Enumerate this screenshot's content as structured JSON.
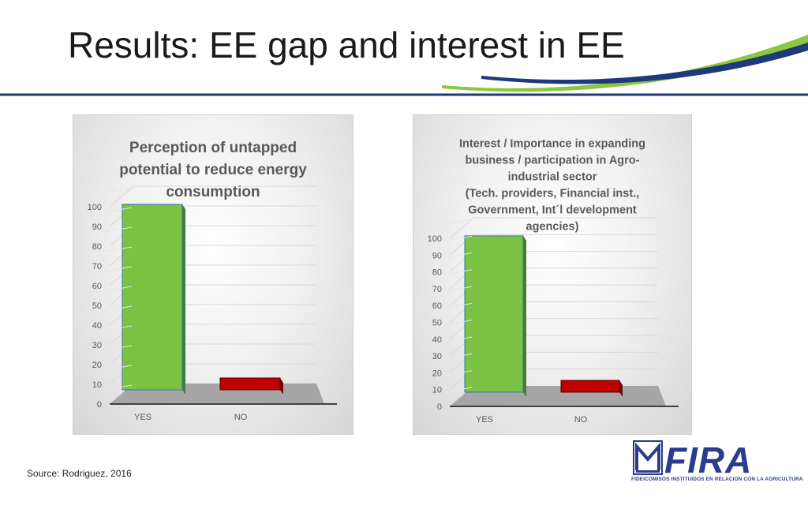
{
  "slide": {
    "title": "Results: EE gap and interest in EE",
    "source": "Source: Rodriguez, 2016"
  },
  "logo": {
    "name": "FIRA",
    "tagline": "FIDEICOMISOS INSTITUIDOS EN RELACION CON LA AGRICULTURA",
    "color": "#2b3c8c"
  },
  "colors": {
    "bar_yes": "#7bc144",
    "bar_no": "#c00000",
    "swoosh_blue": "#1f3a7a",
    "swoosh_green": "#8dc63f"
  },
  "chart_data": [
    {
      "type": "bar",
      "title_lines": [
        "Perception of untapped",
        "potential to reduce energy",
        "consumption"
      ],
      "categories": [
        "YES",
        "NO"
      ],
      "values": [
        94,
        6
      ],
      "ylim": [
        0,
        100
      ],
      "yticks": [
        0,
        10,
        20,
        30,
        40,
        50,
        60,
        70,
        80,
        90,
        100
      ],
      "grid": true,
      "style": "3d"
    },
    {
      "type": "bar",
      "title_lines": [
        "Interest / Importance in expanding",
        "business / participation in Agro-",
        "industrial sector",
        "(Tech. providers, Financial inst.,",
        "Government, Int´l development",
        "agencies)"
      ],
      "categories": [
        "YES",
        "NO"
      ],
      "values": [
        93,
        7
      ],
      "ylim": [
        0,
        100
      ],
      "yticks": [
        0,
        10,
        20,
        30,
        40,
        50,
        60,
        70,
        80,
        90,
        100
      ],
      "grid": true,
      "style": "3d"
    }
  ]
}
